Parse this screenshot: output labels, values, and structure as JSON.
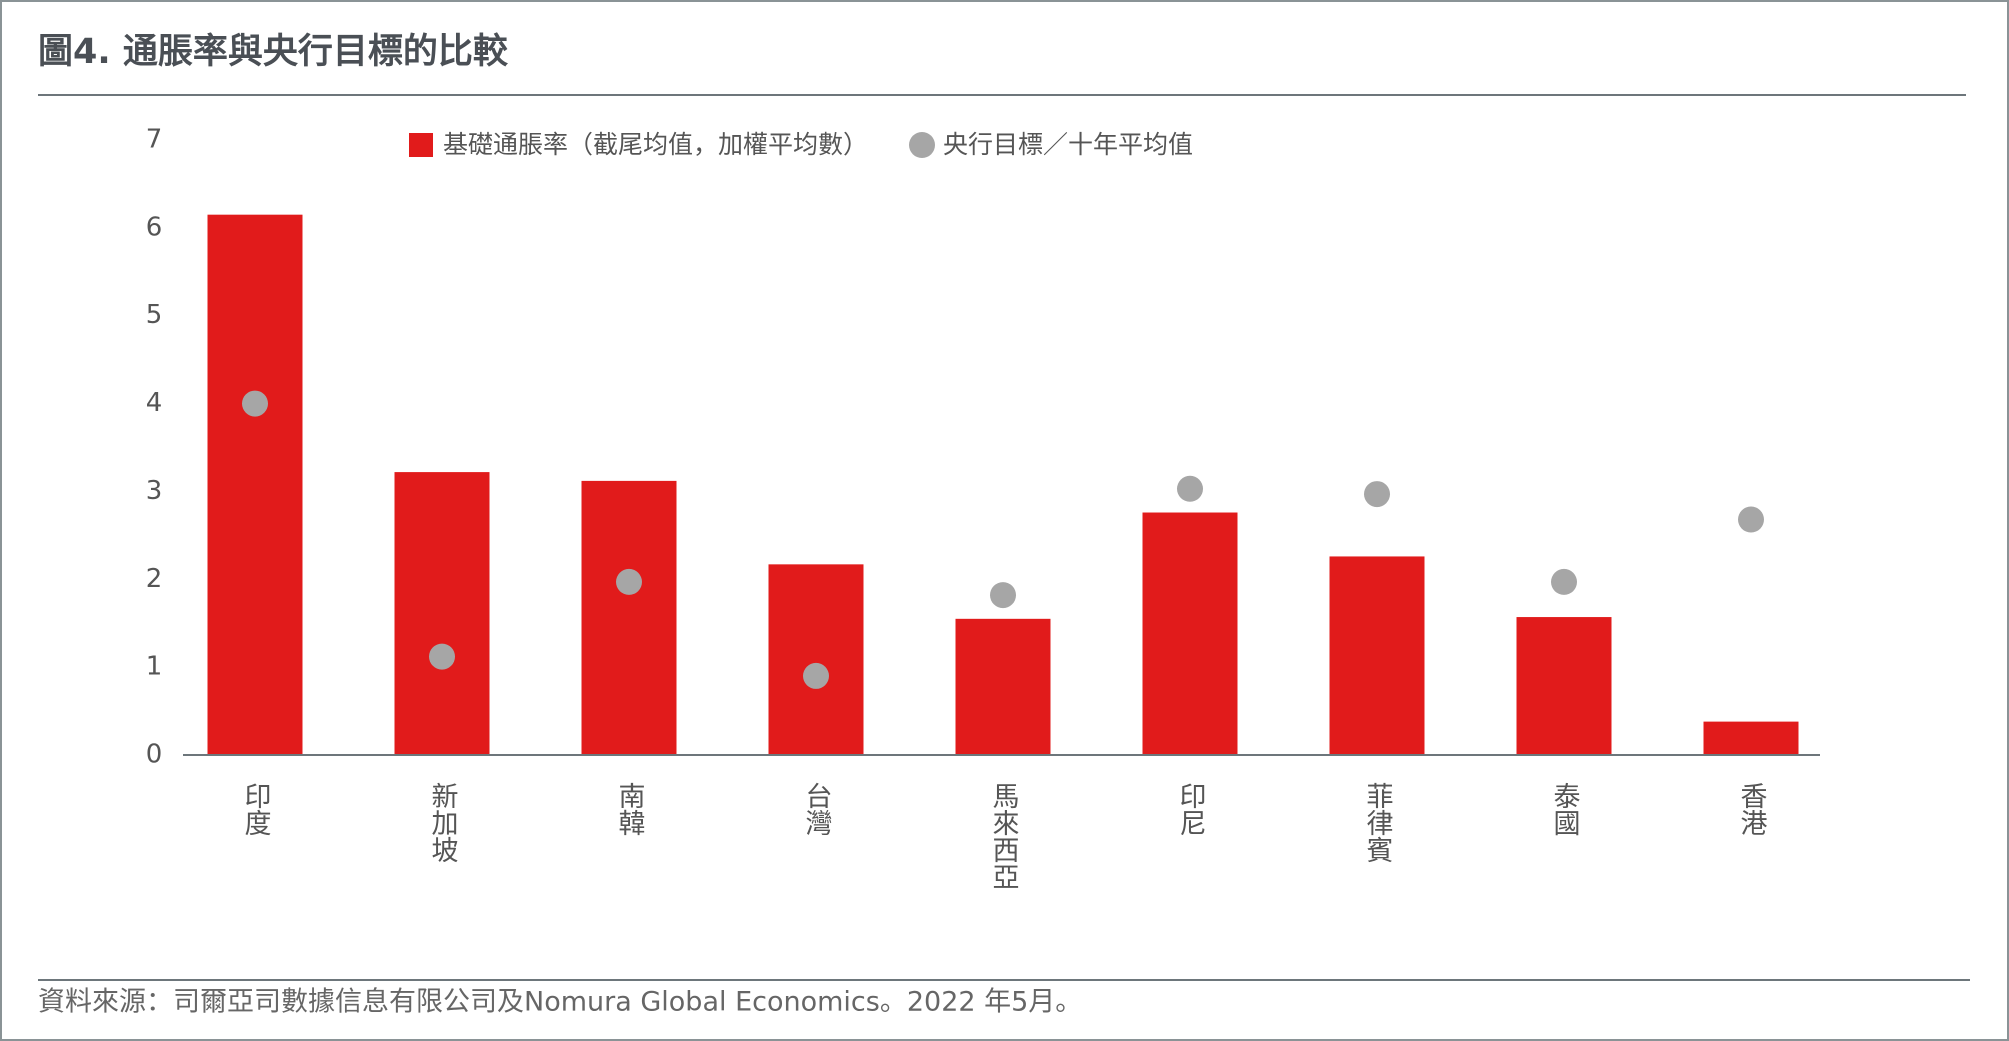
{
  "chart_data": {
    "type": "bar",
    "title": "圖4. 通脹率與央行目標的比較",
    "categories": [
      "印度",
      "新加坡",
      "南韓",
      "台灣",
      "馬來西亞",
      "印尼",
      "菲律賓",
      "泰國",
      "香港"
    ],
    "series": [
      {
        "name": "基礎通脹率（截尾均值，加權平均數）",
        "type": "bar",
        "color": "#e11b1b",
        "values": [
          6.15,
          3.22,
          3.12,
          2.17,
          1.55,
          2.76,
          2.26,
          1.57,
          0.38
        ]
      },
      {
        "name": "央行目標／十年平均值",
        "type": "dot",
        "color": "#a6a6a6",
        "values": [
          4.0,
          1.12,
          1.97,
          0.9,
          1.82,
          3.03,
          2.97,
          1.97,
          2.68
        ]
      }
    ],
    "ylim": [
      0,
      7
    ],
    "yticks": [
      0,
      1,
      2,
      3,
      4,
      5,
      6,
      7
    ],
    "grid": false,
    "source": "資料來源：司爾亞司數據信息有限公司及Nomura Global Economics。2022 年5月。"
  }
}
